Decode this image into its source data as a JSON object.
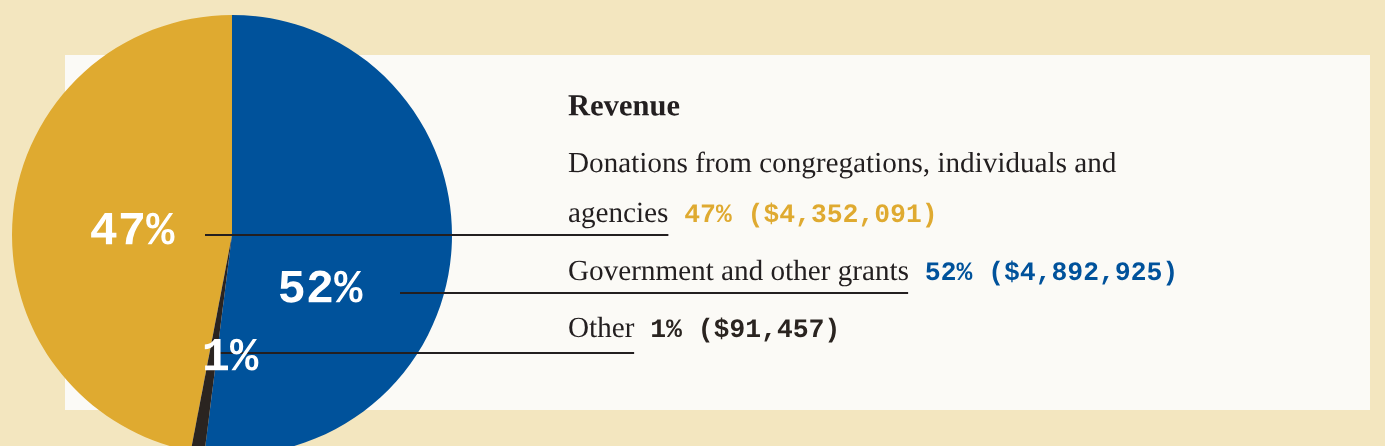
{
  "chart_data": {
    "type": "pie",
    "title": "Revenue",
    "categories": [
      "Donations from congregations, individuals and\nagencies",
      "Government and other grants",
      "Other"
    ],
    "values": [
      47,
      52,
      1
    ],
    "colors": [
      "#dfaa30",
      "#00529b",
      "#2a2420"
    ],
    "value_labels": [
      "47%",
      "52%",
      "1%"
    ],
    "annotations": [
      "47% ($4,352,091)",
      "52% ($4,892,925)",
      "1% ($91,457)"
    ]
  }
}
